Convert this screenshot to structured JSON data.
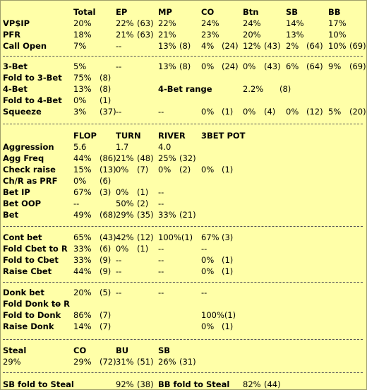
{
  "preflop": {
    "headers": [
      "Total",
      "EP",
      "MP",
      "CO",
      "Btn",
      "SB",
      "BB"
    ],
    "rows": [
      {
        "label": "VP$IP",
        "cells": [
          "20%",
          "22%",
          "(63)",
          "22%",
          "24%",
          "24%",
          "14%",
          "17%"
        ]
      },
      {
        "label": "PFR",
        "cells": [
          "18%",
          "21%",
          "(63)",
          "21%",
          "23%",
          "20%",
          "13%",
          "10%"
        ]
      },
      {
        "label": "Call Open",
        "cells": [
          "7%",
          "--",
          "13%",
          "(8)",
          "4%",
          "(24)",
          "12%",
          "(43)",
          "2%",
          "(64)",
          "10%",
          "(69)"
        ]
      }
    ]
  },
  "threebet": {
    "rows": [
      {
        "label": "3-Bet",
        "cells": [
          "5%",
          "--",
          "13%",
          "(8)",
          "0%",
          "(24)",
          "0%",
          "(43)",
          "6%",
          "(64)",
          "9%",
          "(69)"
        ]
      },
      {
        "label": "Fold to 3-Bet",
        "cells": [
          "75%",
          "(8)"
        ]
      },
      {
        "label": "4-Bet",
        "cells": [
          "13%",
          "(8)",
          "4-Bet range",
          "2.2%",
          "(8)"
        ]
      },
      {
        "label": "Fold to 4-Bet",
        "cells": [
          "0%",
          "(1)"
        ]
      },
      {
        "label": "Squeeze",
        "cells": [
          "3%",
          "(37)",
          "--",
          "--",
          "0%",
          "(1)",
          "0%",
          "(4)",
          "0%",
          "(12)",
          "5%",
          "(20)"
        ]
      }
    ]
  },
  "postflop": {
    "headers": [
      "FLOP",
      "TURN",
      "RIVER",
      "3BET POT"
    ],
    "rows": [
      {
        "label": "Aggression",
        "cells": [
          "5.6",
          "1.7",
          "4.0"
        ]
      },
      {
        "label": "Agg Freq",
        "cells": [
          "44%",
          "(86)",
          "21%",
          "(48)",
          "25%",
          "(32)"
        ]
      },
      {
        "label": "Check raise",
        "cells": [
          "15%",
          "(13)",
          "0%",
          "(7)",
          "0%",
          "(2)",
          "0%",
          "(1)"
        ]
      },
      {
        "label": "Ch/R as PRF",
        "cells": [
          "0%",
          "(6)"
        ]
      },
      {
        "label": "Bet IP",
        "cells": [
          "67%",
          "(3)",
          "0%",
          "(1)",
          "--"
        ]
      },
      {
        "label": "Bet OOP",
        "cells": [
          "--",
          "50%",
          "(2)",
          "--"
        ]
      },
      {
        "label": "Bet",
        "cells": [
          "49%",
          "(68)",
          "29%",
          "(35)",
          "33%",
          "(21)"
        ]
      }
    ]
  },
  "cbet": {
    "rows": [
      {
        "label": "Cont bet",
        "cells": [
          "65%",
          "(43)",
          "42%",
          "(12)",
          "100%(1)",
          "67%",
          "(3)"
        ]
      },
      {
        "label": "Fold Cbet to R",
        "cells": [
          "33%",
          "(6)",
          "0%",
          "(1)",
          "--",
          "--"
        ]
      },
      {
        "label": "Fold to Cbet",
        "cells": [
          "33%",
          "(9)",
          "--",
          "--",
          "0%",
          "(1)"
        ]
      },
      {
        "label": "Raise Cbet",
        "cells": [
          "44%",
          "(9)",
          "--",
          "--",
          "0%",
          "(1)"
        ]
      }
    ]
  },
  "donk": {
    "rows": [
      {
        "label": "Donk bet",
        "cells": [
          "20%",
          "(5)",
          "--",
          "--",
          "--"
        ]
      },
      {
        "label": "Fold Donk to R",
        "cells": [
          "--"
        ]
      },
      {
        "label": "Fold to Donk",
        "cells": [
          "86%",
          "(7)",
          "100%(1)"
        ]
      },
      {
        "label": "Raise Donk",
        "cells": [
          "14%",
          "(7)",
          "0%",
          "(1)"
        ]
      }
    ]
  },
  "steal": {
    "label": "Steal",
    "headers": [
      "CO",
      "BU",
      "SB"
    ],
    "total": "29%",
    "cells": [
      "29%",
      "(72)",
      "31%",
      "(51)",
      "26%",
      "(31)"
    ]
  },
  "sb_fold": {
    "label": "SB fold to Steal",
    "value": "92%",
    "count": "(38)",
    "bb_label": "BB fold to Steal",
    "bb_value": "82%",
    "bb_count": "(44)"
  }
}
